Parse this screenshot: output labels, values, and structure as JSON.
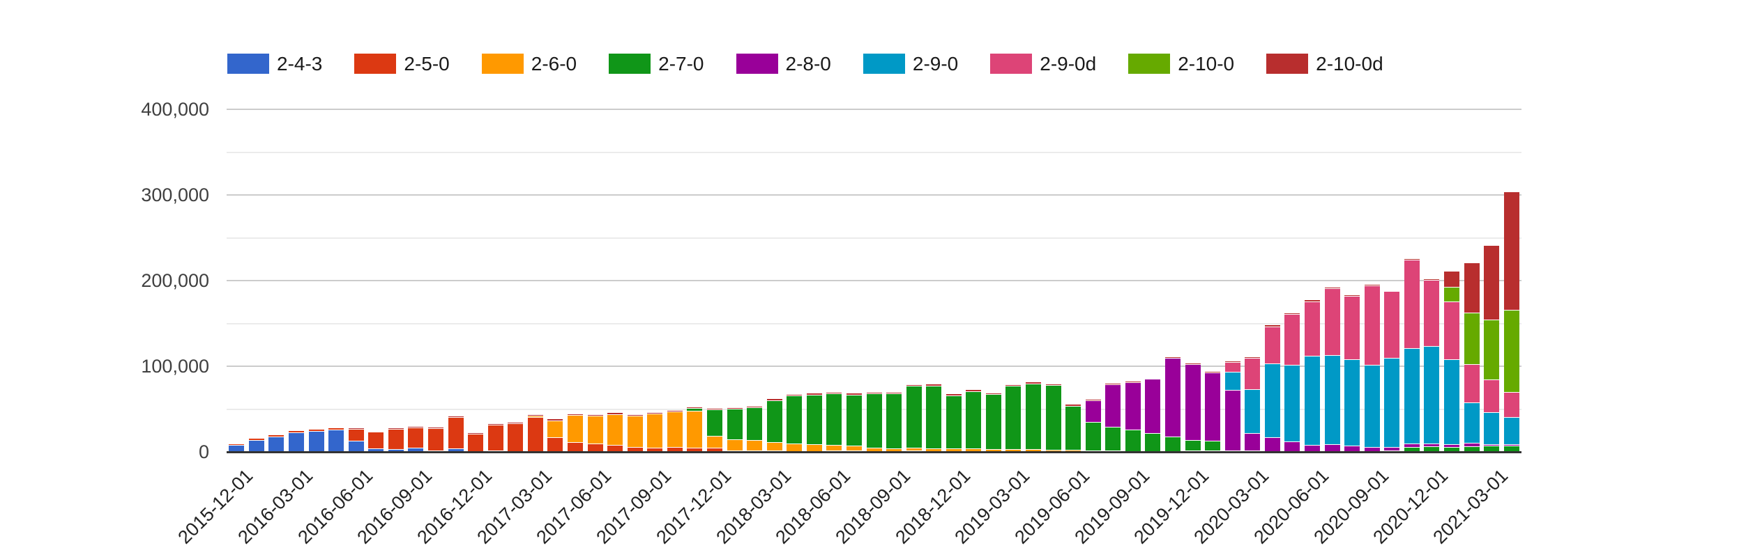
{
  "chart_data": {
    "type": "bar",
    "stacked": true,
    "title": "",
    "legend_position": "top",
    "grid": true,
    "x_tick_every": 3,
    "months": [
      "2015-12-01",
      "2016-01-01",
      "2016-02-01",
      "2016-03-01",
      "2016-04-01",
      "2016-05-01",
      "2016-06-01",
      "2016-07-01",
      "2016-08-01",
      "2016-09-01",
      "2016-10-01",
      "2016-11-01",
      "2016-12-01",
      "2017-01-01",
      "2017-02-01",
      "2017-03-01",
      "2017-04-01",
      "2017-05-01",
      "2017-06-01",
      "2017-07-01",
      "2017-08-01",
      "2017-09-01",
      "2017-10-01",
      "2017-11-01",
      "2017-12-01",
      "2018-01-01",
      "2018-02-01",
      "2018-03-01",
      "2018-04-01",
      "2018-05-01",
      "2018-06-01",
      "2018-07-01",
      "2018-08-01",
      "2018-09-01",
      "2018-10-01",
      "2018-11-01",
      "2018-12-01",
      "2019-01-01",
      "2019-02-01",
      "2019-03-01",
      "2019-04-01",
      "2019-05-01",
      "2019-06-01",
      "2019-07-01",
      "2019-08-01",
      "2019-09-01",
      "2019-10-01",
      "2019-11-01",
      "2019-12-01",
      "2020-01-01",
      "2020-02-01",
      "2020-03-01",
      "2020-04-01",
      "2020-05-01",
      "2020-06-01",
      "2020-07-01",
      "2020-08-01",
      "2020-09-01",
      "2020-10-01",
      "2020-11-01",
      "2020-12-01",
      "2021-01-01",
      "2021-02-01",
      "2021-03-01",
      "2021-04-01"
    ],
    "series": [
      {
        "name": "2-4-3",
        "color": "#3366CC",
        "values": [
          8000,
          14000,
          18000,
          23000,
          24000,
          26000,
          13000,
          4000,
          3000,
          5000,
          2000,
          4000,
          1000,
          2000,
          1000,
          1000,
          500,
          500,
          500,
          500,
          500,
          500,
          500,
          500,
          500,
          500,
          500,
          500,
          500,
          500,
          500,
          500,
          500,
          500,
          500,
          500,
          500,
          500,
          500,
          500,
          500,
          500,
          500,
          500,
          0,
          0,
          0,
          0,
          0,
          0,
          0,
          0,
          0,
          0,
          0,
          0,
          0,
          0,
          0,
          0,
          0,
          0,
          0,
          0,
          0
        ]
      },
      {
        "name": "2-5-0",
        "color": "#DC3912",
        "values": [
          2000,
          2500,
          2500,
          2500,
          2500,
          2500,
          14000,
          20000,
          24000,
          23500,
          26000,
          37000,
          20500,
          30000,
          32500,
          39500,
          16500,
          11000,
          9500,
          8000,
          5000,
          4000,
          5000,
          4000,
          4000,
          1000,
          1000,
          1000,
          500,
          500,
          1000,
          1000,
          500,
          500,
          1000,
          500,
          500,
          500,
          500,
          500,
          500,
          500,
          500,
          500,
          500,
          500,
          500,
          500,
          500,
          500,
          0,
          0,
          0,
          0,
          0,
          0,
          0,
          0,
          0,
          0,
          0,
          0,
          0,
          0,
          0
        ]
      },
      {
        "name": "2-6-0",
        "color": "#FF9900",
        "values": [
          0,
          0,
          0,
          0,
          0,
          0,
          0,
          0,
          0,
          0,
          0,
          0,
          0,
          0,
          0,
          2000,
          20000,
          32000,
          32000,
          35500,
          36500,
          40000,
          41500,
          43500,
          14000,
          13000,
          12000,
          10000,
          9000,
          8000,
          7000,
          6000,
          4000,
          3000,
          3000,
          3000,
          3000,
          3000,
          2500,
          2500,
          2000,
          1500,
          1500,
          1000,
          1000,
          500,
          500,
          500,
          1500,
          1000,
          500,
          500,
          0,
          0,
          0,
          0,
          0,
          0,
          0,
          0,
          0,
          0,
          0,
          0,
          0
        ]
      },
      {
        "name": "2-7-0",
        "color": "#109618",
        "values": [
          0,
          0,
          0,
          0,
          0,
          0,
          0,
          0,
          0,
          0,
          0,
          0,
          0,
          0,
          0,
          0,
          0,
          0,
          0,
          0,
          0,
          0,
          0,
          3000,
          31500,
          36000,
          38500,
          49000,
          55500,
          58000,
          59500,
          59500,
          63000,
          64000,
          72500,
          73500,
          62000,
          67000,
          64000,
          73500,
          77000,
          75500,
          51500,
          33000,
          27500,
          25000,
          21000,
          17000,
          12000,
          11500,
          1500,
          1000,
          1000,
          1000,
          1000,
          1000,
          1000,
          1000,
          1500,
          5500,
          6500,
          6000,
          6500,
          7500,
          7000
        ]
      },
      {
        "name": "2-8-0",
        "color": "#990099",
        "values": [
          0,
          0,
          0,
          0,
          0,
          0,
          0,
          0,
          0,
          0,
          0,
          0,
          0,
          0,
          0,
          0,
          0,
          0,
          0,
          0,
          0,
          0,
          0,
          0,
          0,
          0,
          0,
          0,
          0,
          0,
          0,
          0,
          0,
          0,
          0,
          0,
          0,
          0,
          0,
          0,
          0,
          0,
          0,
          25000,
          50000,
          55000,
          63000,
          91500,
          88500,
          80000,
          70500,
          20500,
          16000,
          11000,
          7000,
          8000,
          6500,
          5000,
          4000,
          4000,
          3500,
          3000,
          4000,
          1500,
          2000
        ]
      },
      {
        "name": "2-9-0",
        "color": "#0099C6",
        "values": [
          0,
          0,
          0,
          0,
          0,
          0,
          0,
          0,
          0,
          0,
          0,
          0,
          0,
          0,
          0,
          0,
          0,
          0,
          0,
          0,
          0,
          0,
          0,
          0,
          0,
          0,
          0,
          0,
          0,
          0,
          0,
          0,
          0,
          0,
          0,
          0,
          0,
          0,
          0,
          0,
          0,
          0,
          0,
          0,
          0,
          0,
          0,
          0,
          0,
          0,
          21000,
          51000,
          86500,
          90000,
          104000,
          104000,
          101000,
          96000,
          104500,
          112000,
          113500,
          99500,
          47500,
          37000,
          32000
        ]
      },
      {
        "name": "2-9-0d",
        "color": "#DD4477",
        "values": [
          0,
          0,
          0,
          0,
          0,
          0,
          0,
          0,
          0,
          0,
          0,
          0,
          0,
          0,
          0,
          0,
          0,
          0,
          0,
          0,
          0,
          0,
          0,
          0,
          0,
          0,
          0,
          0,
          0,
          0,
          0,
          0,
          0,
          0,
          0,
          0,
          0,
          0,
          0,
          0,
          0,
          0,
          0,
          0,
          0,
          0,
          0,
          0,
          0,
          0,
          11500,
          36500,
          43000,
          59000,
          64000,
          78000,
          74000,
          92500,
          77500,
          103000,
          77500,
          67000,
          44500,
          38500,
          29000
        ]
      },
      {
        "name": "2-10-0",
        "color": "#66AA00",
        "values": [
          0,
          0,
          0,
          0,
          0,
          0,
          0,
          0,
          0,
          0,
          0,
          0,
          0,
          0,
          0,
          0,
          0,
          0,
          0,
          0,
          0,
          0,
          0,
          0,
          0,
          0,
          0,
          0,
          0,
          0,
          0,
          0,
          0,
          0,
          0,
          0,
          0,
          0,
          0,
          0,
          0,
          0,
          0,
          0,
          0,
          0,
          0,
          0,
          0,
          0,
          0,
          0,
          0,
          0,
          0,
          0,
          0,
          0,
          0,
          0,
          0,
          17000,
          60000,
          70000,
          96000
        ]
      },
      {
        "name": "2-10-0d",
        "color": "#B82E2E",
        "values": [
          0,
          0,
          0,
          0,
          0,
          0,
          1500,
          1500,
          1500,
          1500,
          1500,
          1500,
          1500,
          1500,
          1500,
          1500,
          2000,
          1500,
          2000,
          2000,
          2000,
          2000,
          2000,
          2000,
          1500,
          1500,
          1500,
          2000,
          2000,
          2000,
          2000,
          2000,
          2000,
          2000,
          2000,
          2000,
          2000,
          2000,
          2000,
          2000,
          2000,
          2000,
          2000,
          2000,
          1500,
          2000,
          1500,
          1500,
          1500,
          1500,
          1500,
          1500,
          2000,
          2000,
          2000,
          2000,
          1500,
          1500,
          1500,
          1500,
          1500,
          18500,
          59000,
          87000,
          138000
        ]
      }
    ],
    "y_axis": {
      "min": 0,
      "max": 400000,
      "major_step": 100000,
      "minor_step": 50000,
      "tick_labels": [
        "0",
        "100,000",
        "200,000",
        "300,000",
        "400,000"
      ]
    }
  }
}
